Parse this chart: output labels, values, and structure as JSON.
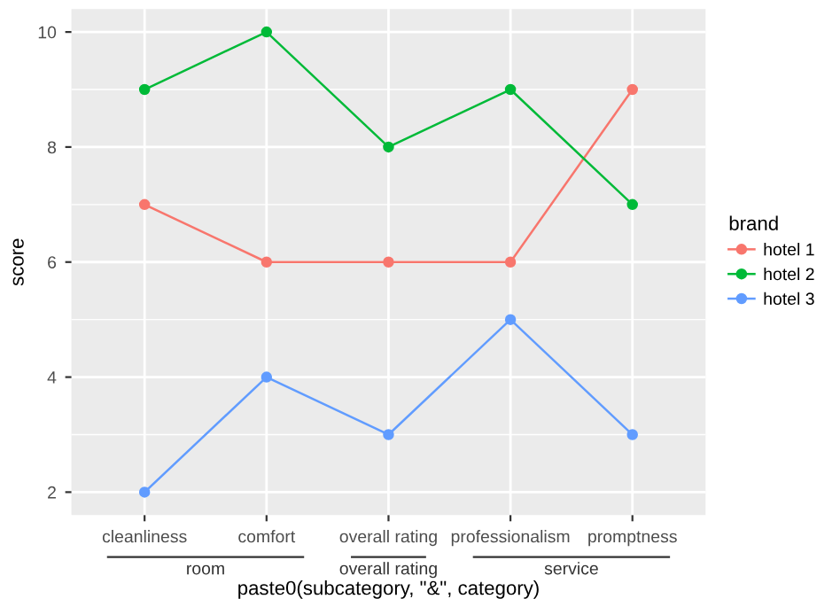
{
  "chart_data": {
    "type": "line",
    "xlabel": "paste0(subcategory, \"&\", category)",
    "ylabel": "score",
    "legend_title": "brand",
    "categories": [
      "cleanliness",
      "comfort",
      "overall rating",
      "professionalism",
      "promptness"
    ],
    "annotations": [
      "room",
      "overall rating",
      "service"
    ],
    "series": [
      {
        "name": "hotel 1",
        "color": "#f8766d",
        "values": [
          7,
          6,
          6,
          6,
          9
        ]
      },
      {
        "name": "hotel 2",
        "color": "#00ba38",
        "values": [
          9,
          10,
          8,
          9,
          7
        ]
      },
      {
        "name": "hotel 3",
        "color": "#619cff",
        "values": [
          2,
          4,
          3,
          5,
          3
        ]
      }
    ],
    "ylim": [
      1.6,
      10.4
    ],
    "yticks": [
      2,
      4,
      6,
      8,
      10
    ],
    "grid": true,
    "legend": "right",
    "marker": "circle",
    "line_style": "solid"
  }
}
